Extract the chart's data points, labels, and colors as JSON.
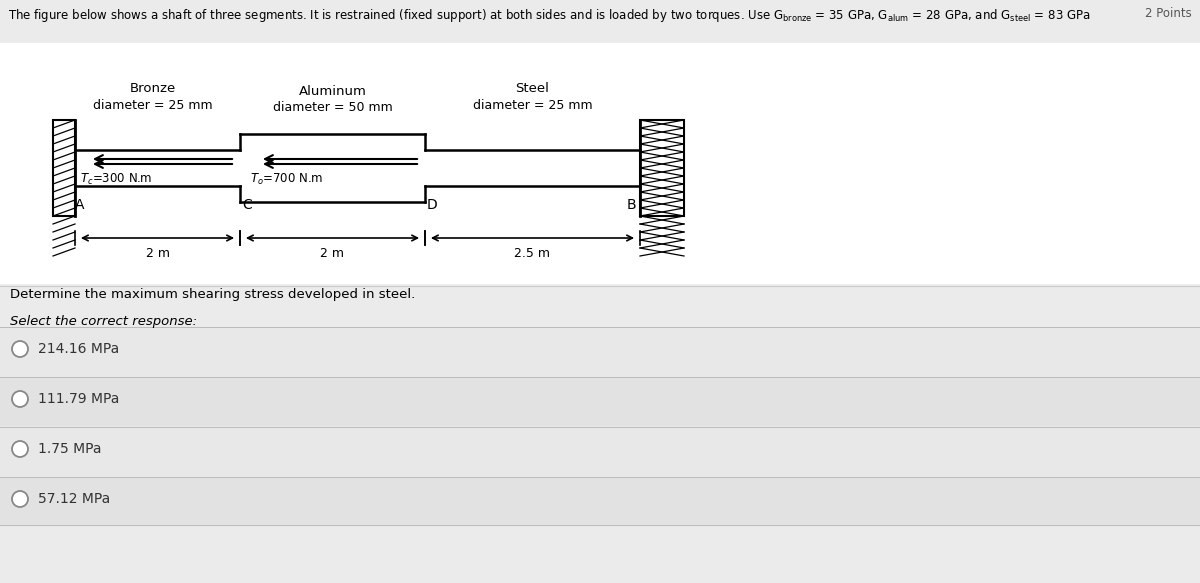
{
  "header": "The figure below shows a shaft of three segments. It is restrained (fixed support) at both sides and is loaded by two torques. Use G$_{\\mathrm{bronze}}$ = 35 GPa, G$_{\\mathrm{alum}}$ = 28 GPa, and G$_{\\mathrm{steel}}$ = 83 GPa",
  "top_right_label": "2 Points",
  "segment_labels": [
    "Bronze",
    "Aluminum",
    "Steel"
  ],
  "segment_diameters": [
    "diameter = 25 mm",
    "diameter = 50 mm",
    "diameter = 25 mm"
  ],
  "torque_c_label": "T⁣=300 N.m",
  "torque_d_label": "Tₙ=700 N.m",
  "point_labels": [
    "A",
    "C",
    "D",
    "B"
  ],
  "length_labels": [
    "2 m",
    "2 m",
    "2.5 m"
  ],
  "question": "Determine the maximum shearing stress developed in steel.",
  "select_text": "Select the correct response:",
  "options": [
    "214.16 MPa",
    "111.79 MPa",
    "1.75 MPa",
    "57.12 MPa"
  ],
  "bg_color": "#ebebeb",
  "shaft_color": "#000000",
  "text_color": "#000000",
  "wall_bg": "#ffffff",
  "option_band_colors": [
    "#e8e8e8",
    "#e0e0e0",
    "#e8e8e8",
    "#e0e0e0"
  ]
}
